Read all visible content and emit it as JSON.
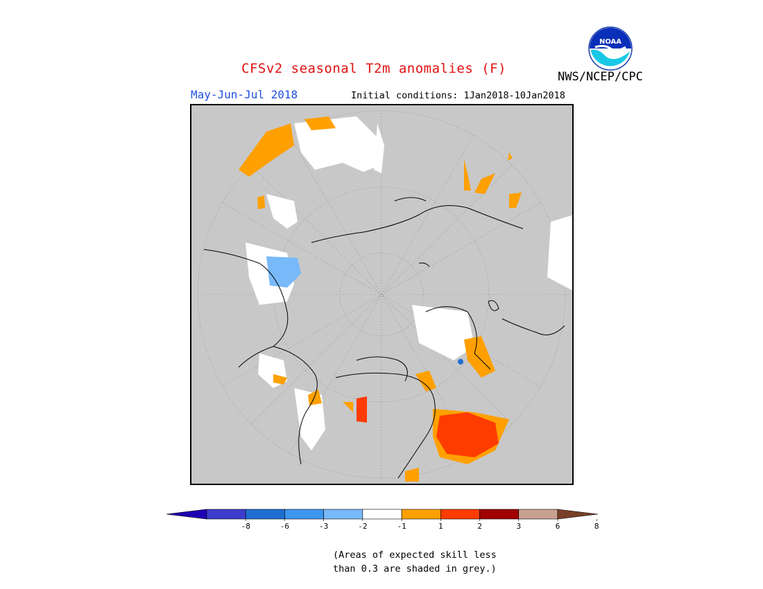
{
  "header": {
    "title": "CFSv2 seasonal T2m anomalies (F)",
    "title_color": "#e01010",
    "agency": "NWS/NCEP/CPC",
    "period": "May-Jun-Jul 2018",
    "period_color": "#1f4fe0",
    "initial_conditions": "Initial conditions: 1Jan2018-10Jan2018",
    "logo_text": "NOAA"
  },
  "map": {
    "projection": "polar stereographic, North Pole",
    "background_color": "#c8c8c8",
    "graticule": "dotted"
  },
  "legend": {
    "colors": [
      "#1e00b4",
      "#3c3ccc",
      "#1e6ed2",
      "#3c96f0",
      "#78b9fa",
      "#ffffff",
      "#ffa000",
      "#ff3c00",
      "#a00000",
      "#c8a090",
      "#784028"
    ],
    "tick_labels": [
      "-8",
      "-6",
      "-3",
      "-2",
      "-1",
      "1",
      "2",
      "3",
      "6",
      "8"
    ]
  },
  "footnote": {
    "line1": "(Areas of expected skill less",
    "line2": "than 0.3 are shaded in grey.)"
  }
}
